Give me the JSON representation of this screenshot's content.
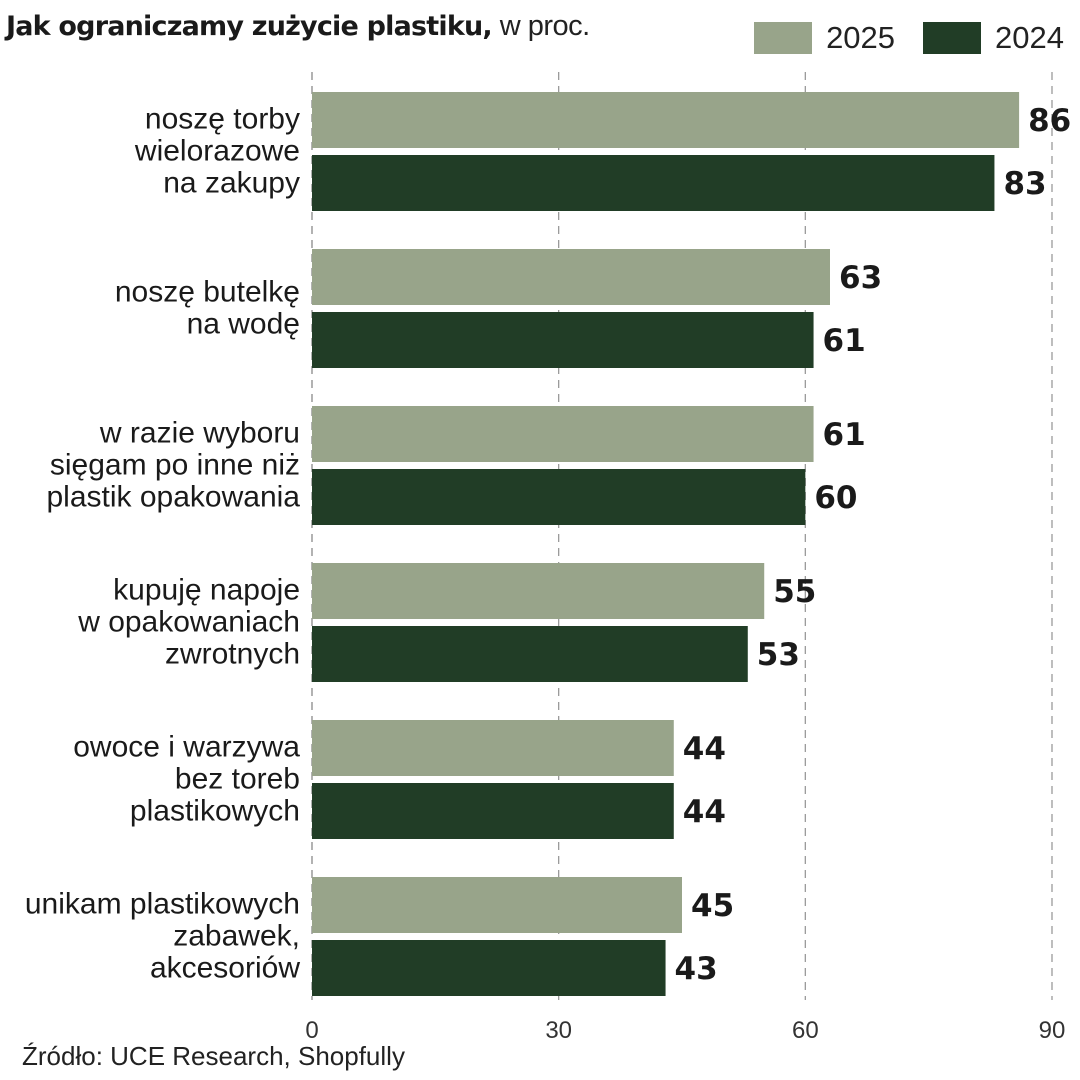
{
  "chart_data": {
    "type": "bar",
    "orientation": "horizontal",
    "title": "Jak ograniczamy zużycie plastiku,",
    "title_unit": "w proc.",
    "categories": [
      [
        "noszę torby",
        "wielorazowe",
        "na zakupy"
      ],
      [
        "noszę butelkę",
        "na wodę"
      ],
      [
        "w razie wyboru",
        "sięgam po inne niż",
        "plastik opakowania"
      ],
      [
        "kupuję napoje",
        "w opakowaniach",
        "zwrotnych"
      ],
      [
        "owoce i warzywa",
        "bez toreb",
        "plastikowych"
      ],
      [
        "unikam plastikowych",
        "zabawek,",
        "akcesoriów"
      ]
    ],
    "series": [
      {
        "name": "2025",
        "color": "#98a48a",
        "values": [
          86,
          63,
          61,
          55,
          44,
          45
        ]
      },
      {
        "name": "2024",
        "color": "#213d26",
        "values": [
          83,
          61,
          60,
          53,
          44,
          43
        ]
      }
    ],
    "xlim": [
      0,
      90
    ],
    "xticks": [
      "0",
      "30",
      "60",
      "90"
    ],
    "xtick_values": [
      0,
      30,
      60,
      90
    ],
    "grid": true,
    "legend_position": "top-right",
    "source": "Źródło: UCE Research, Shopfully"
  }
}
